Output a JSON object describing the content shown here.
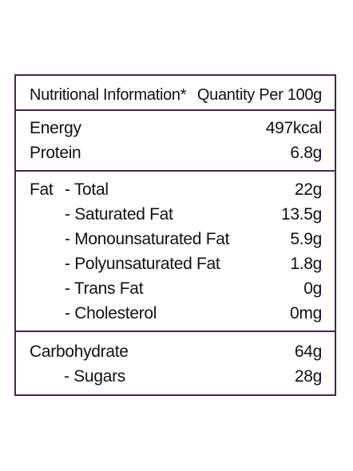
{
  "header": {
    "title": "Nutritional Information*",
    "quantity_label": "Quantity Per 100g"
  },
  "energy_section": [
    {
      "label": "Energy",
      "value": "497kcal"
    },
    {
      "label": "Protein",
      "value": "6.8g"
    }
  ],
  "fat_section": {
    "prefix": "Fat",
    "rows": [
      {
        "label": "- Total",
        "value": "22g"
      },
      {
        "label": "- Saturated Fat",
        "value": "13.5g"
      },
      {
        "label": "- Monounsaturated Fat",
        "value": "5.9g"
      },
      {
        "label": "- Polyunsaturated Fat",
        "value": "1.8g"
      },
      {
        "label": "- Trans Fat",
        "value": "0g"
      },
      {
        "label": "- Cholesterol",
        "value": "0mg"
      }
    ]
  },
  "carb_section": [
    {
      "label": "Carbohydrate",
      "value": "64g"
    },
    {
      "label": "- Sugars",
      "value": "28g"
    }
  ],
  "colors": {
    "border": "#4a2250",
    "text": "#111111",
    "background": "#ffffff"
  }
}
